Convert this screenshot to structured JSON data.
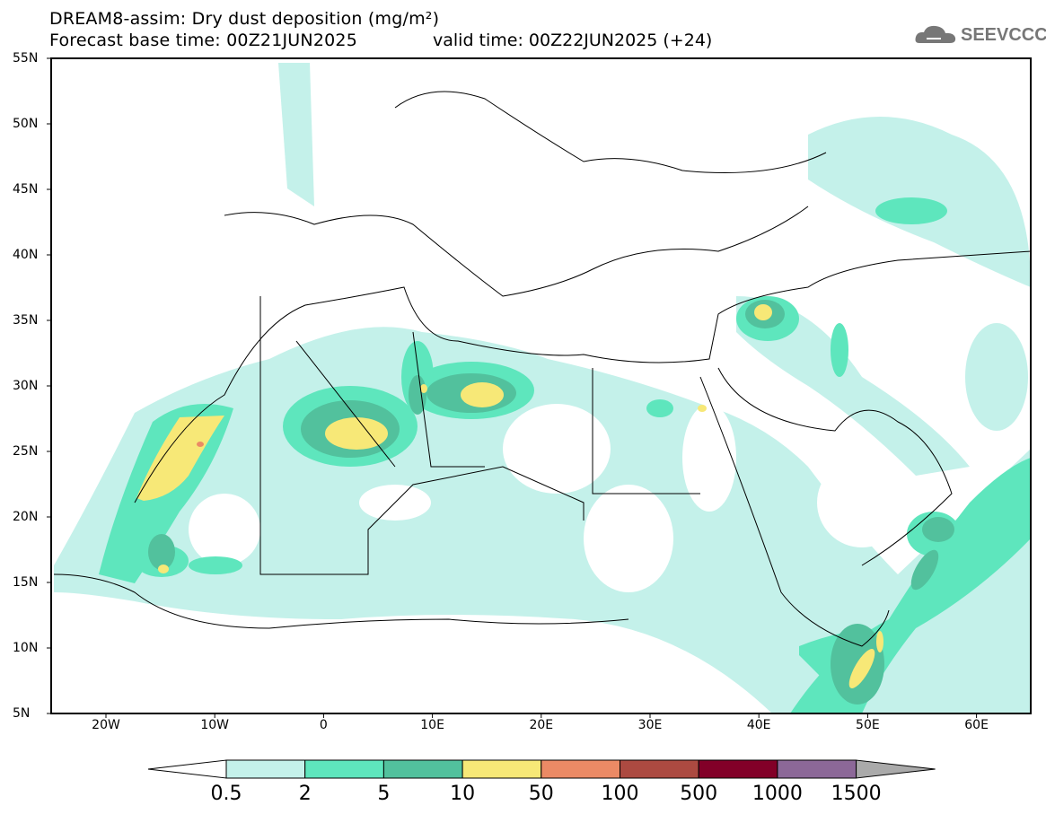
{
  "title": "DREAM8-assim: Dry dust deposition (mg/m²)",
  "forecast_base": "Forecast base time: 00Z21JUN2025",
  "valid_time": "valid time: 00Z22JUN2025 (+24)",
  "logo": "SEEVCCC",
  "lat_labels": [
    "55N",
    "50N",
    "45N",
    "40N",
    "35N",
    "30N",
    "25N",
    "20N",
    "15N",
    "10N",
    "5N"
  ],
  "lon_labels": [
    "20W",
    "10W",
    "0",
    "10E",
    "20E",
    "30E",
    "40E",
    "50E",
    "60E"
  ],
  "colorbar": {
    "labels": [
      "0.5",
      "2",
      "5",
      "10",
      "50",
      "100",
      "500",
      "1000",
      "1500"
    ],
    "colors": [
      "#c4f1ea",
      "#5ee6bd",
      "#52c19d",
      "#f7e877",
      "#eb8a65",
      "#ac4a41",
      "#820028",
      "#8c6898",
      "#aaaaaa"
    ]
  }
}
